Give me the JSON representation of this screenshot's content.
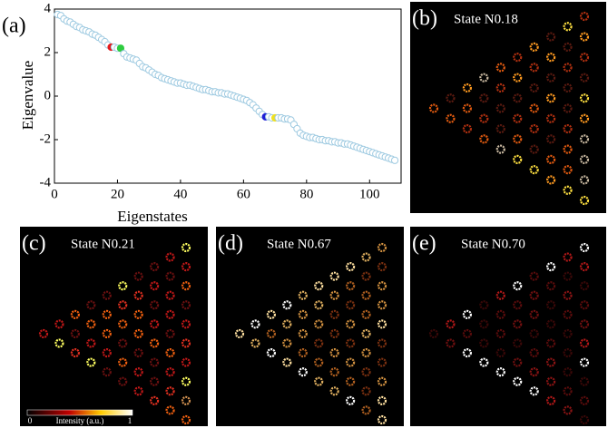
{
  "chart_data": {
    "type": "scatter",
    "panel_label": "(a)",
    "xlabel": "Eigenstates",
    "ylabel": "Eigenvalue",
    "x": [
      1,
      2,
      3,
      4,
      5,
      6,
      7,
      8,
      9,
      10,
      11,
      12,
      13,
      14,
      15,
      16,
      17,
      18,
      19,
      20,
      21,
      22,
      23,
      24,
      25,
      26,
      27,
      28,
      29,
      30,
      31,
      32,
      33,
      34,
      35,
      36,
      37,
      38,
      39,
      40,
      41,
      42,
      43,
      44,
      45,
      46,
      47,
      48,
      49,
      50,
      51,
      52,
      53,
      54,
      55,
      56,
      57,
      58,
      59,
      60,
      61,
      62,
      63,
      64,
      65,
      66,
      67,
      68,
      69,
      70,
      71,
      72,
      73,
      74,
      75,
      76,
      77,
      78,
      79,
      80,
      81,
      82,
      83,
      84,
      85,
      86,
      87,
      88,
      89,
      90,
      91,
      92,
      93,
      94,
      95,
      96,
      97,
      98,
      99,
      100,
      101,
      102,
      103,
      104,
      105,
      106,
      107,
      108
    ],
    "values": [
      3.75,
      3.7,
      3.55,
      3.45,
      3.4,
      3.3,
      3.2,
      3.15,
      3.05,
      3.0,
      2.95,
      2.85,
      2.8,
      2.7,
      2.6,
      2.5,
      2.35,
      2.25,
      2.25,
      2.2,
      2.2,
      1.95,
      1.8,
      1.75,
      1.7,
      1.65,
      1.5,
      1.35,
      1.3,
      1.2,
      1.1,
      1.0,
      0.95,
      0.85,
      0.8,
      0.75,
      0.7,
      0.65,
      0.6,
      0.6,
      0.55,
      0.5,
      0.5,
      0.45,
      0.4,
      0.35,
      0.3,
      0.3,
      0.25,
      0.2,
      0.2,
      0.15,
      0.15,
      0.1,
      0.1,
      0.05,
      0.0,
      -0.05,
      -0.1,
      -0.15,
      -0.2,
      -0.3,
      -0.4,
      -0.55,
      -0.7,
      -0.85,
      -0.95,
      -0.95,
      -1.0,
      -1.0,
      -1.0,
      -1.0,
      -1.05,
      -1.05,
      -1.1,
      -1.3,
      -1.5,
      -1.7,
      -1.8,
      -1.85,
      -1.9,
      -1.9,
      -1.95,
      -2.0,
      -2.0,
      -2.05,
      -2.05,
      -2.1,
      -2.1,
      -2.15,
      -2.15,
      -2.2,
      -2.2,
      -2.25,
      -2.3,
      -2.35,
      -2.4,
      -2.45,
      -2.5,
      -2.55,
      -2.6,
      -2.65,
      -2.7,
      -2.75,
      -2.8,
      -2.85,
      -2.9,
      -2.95
    ],
    "edge_color": "#9ecae1",
    "fill_colors": [
      "#ffffff",
      "#ffffff",
      "#ffffff",
      "#ffffff",
      "#ffffff",
      "#ffffff",
      "#ffffff",
      "#ffffff",
      "#ffffff",
      "#ffffff",
      "#ffffff",
      "#ffffff",
      "#ffffff",
      "#ffffff",
      "#ffffff",
      "#ffffff",
      "#ffffff",
      "#e41a1c",
      "#ffffff",
      "#ffffff",
      "#2ecc40",
      "#ffffff",
      "#ffffff",
      "#ffffff",
      "#ffffff",
      "#ffffff",
      "#ffffff",
      "#ffffff",
      "#ffffff",
      "#ffffff",
      "#ffffff",
      "#ffffff",
      "#ffffff",
      "#ffffff",
      "#ffffff",
      "#ffffff",
      "#ffffff",
      "#ffffff",
      "#ffffff",
      "#ffffff",
      "#ffffff",
      "#ffffff",
      "#ffffff",
      "#ffffff",
      "#ffffff",
      "#ffffff",
      "#ffffff",
      "#ffffff",
      "#ffffff",
      "#ffffff",
      "#ffffff",
      "#ffffff",
      "#ffffff",
      "#ffffff",
      "#ffffff",
      "#ffffff",
      "#ffffff",
      "#ffffff",
      "#ffffff",
      "#ffffff",
      "#ffffff",
      "#ffffff",
      "#ffffff",
      "#ffffff",
      "#ffffff",
      "#ffffff",
      "#1f1fd6",
      "#ffffff",
      "#ffffff",
      "#f0e020",
      "#ffffff",
      "#ffffff",
      "#ffffff",
      "#ffffff",
      "#ffffff",
      "#ffffff",
      "#ffffff",
      "#ffffff",
      "#ffffff",
      "#ffffff",
      "#ffffff",
      "#ffffff",
      "#ffffff",
      "#ffffff",
      "#ffffff",
      "#ffffff",
      "#ffffff",
      "#ffffff",
      "#ffffff",
      "#ffffff",
      "#ffffff",
      "#ffffff",
      "#ffffff",
      "#ffffff",
      "#ffffff",
      "#ffffff",
      "#ffffff",
      "#ffffff",
      "#ffffff",
      "#ffffff",
      "#ffffff",
      "#ffffff",
      "#ffffff",
      "#ffffff",
      "#ffffff",
      "#ffffff",
      "#ffffff",
      "#ffffff"
    ],
    "xlim": [
      0,
      110
    ],
    "xticks": [
      0,
      20,
      40,
      60,
      80,
      100
    ],
    "ylim": [
      -4,
      4
    ],
    "yticks": [
      -4,
      -2,
      0,
      2,
      4
    ]
  },
  "panels": [
    {
      "label": "(b)",
      "title": "State N0.18"
    },
    {
      "label": "(c)",
      "title": "State N0.21"
    },
    {
      "label": "(d)",
      "title": "State N0.67"
    },
    {
      "label": "(e)",
      "title": "State N0.70"
    }
  ],
  "colorbar": {
    "min": 0,
    "max": 1,
    "label": "Intensity (a.u.)"
  }
}
